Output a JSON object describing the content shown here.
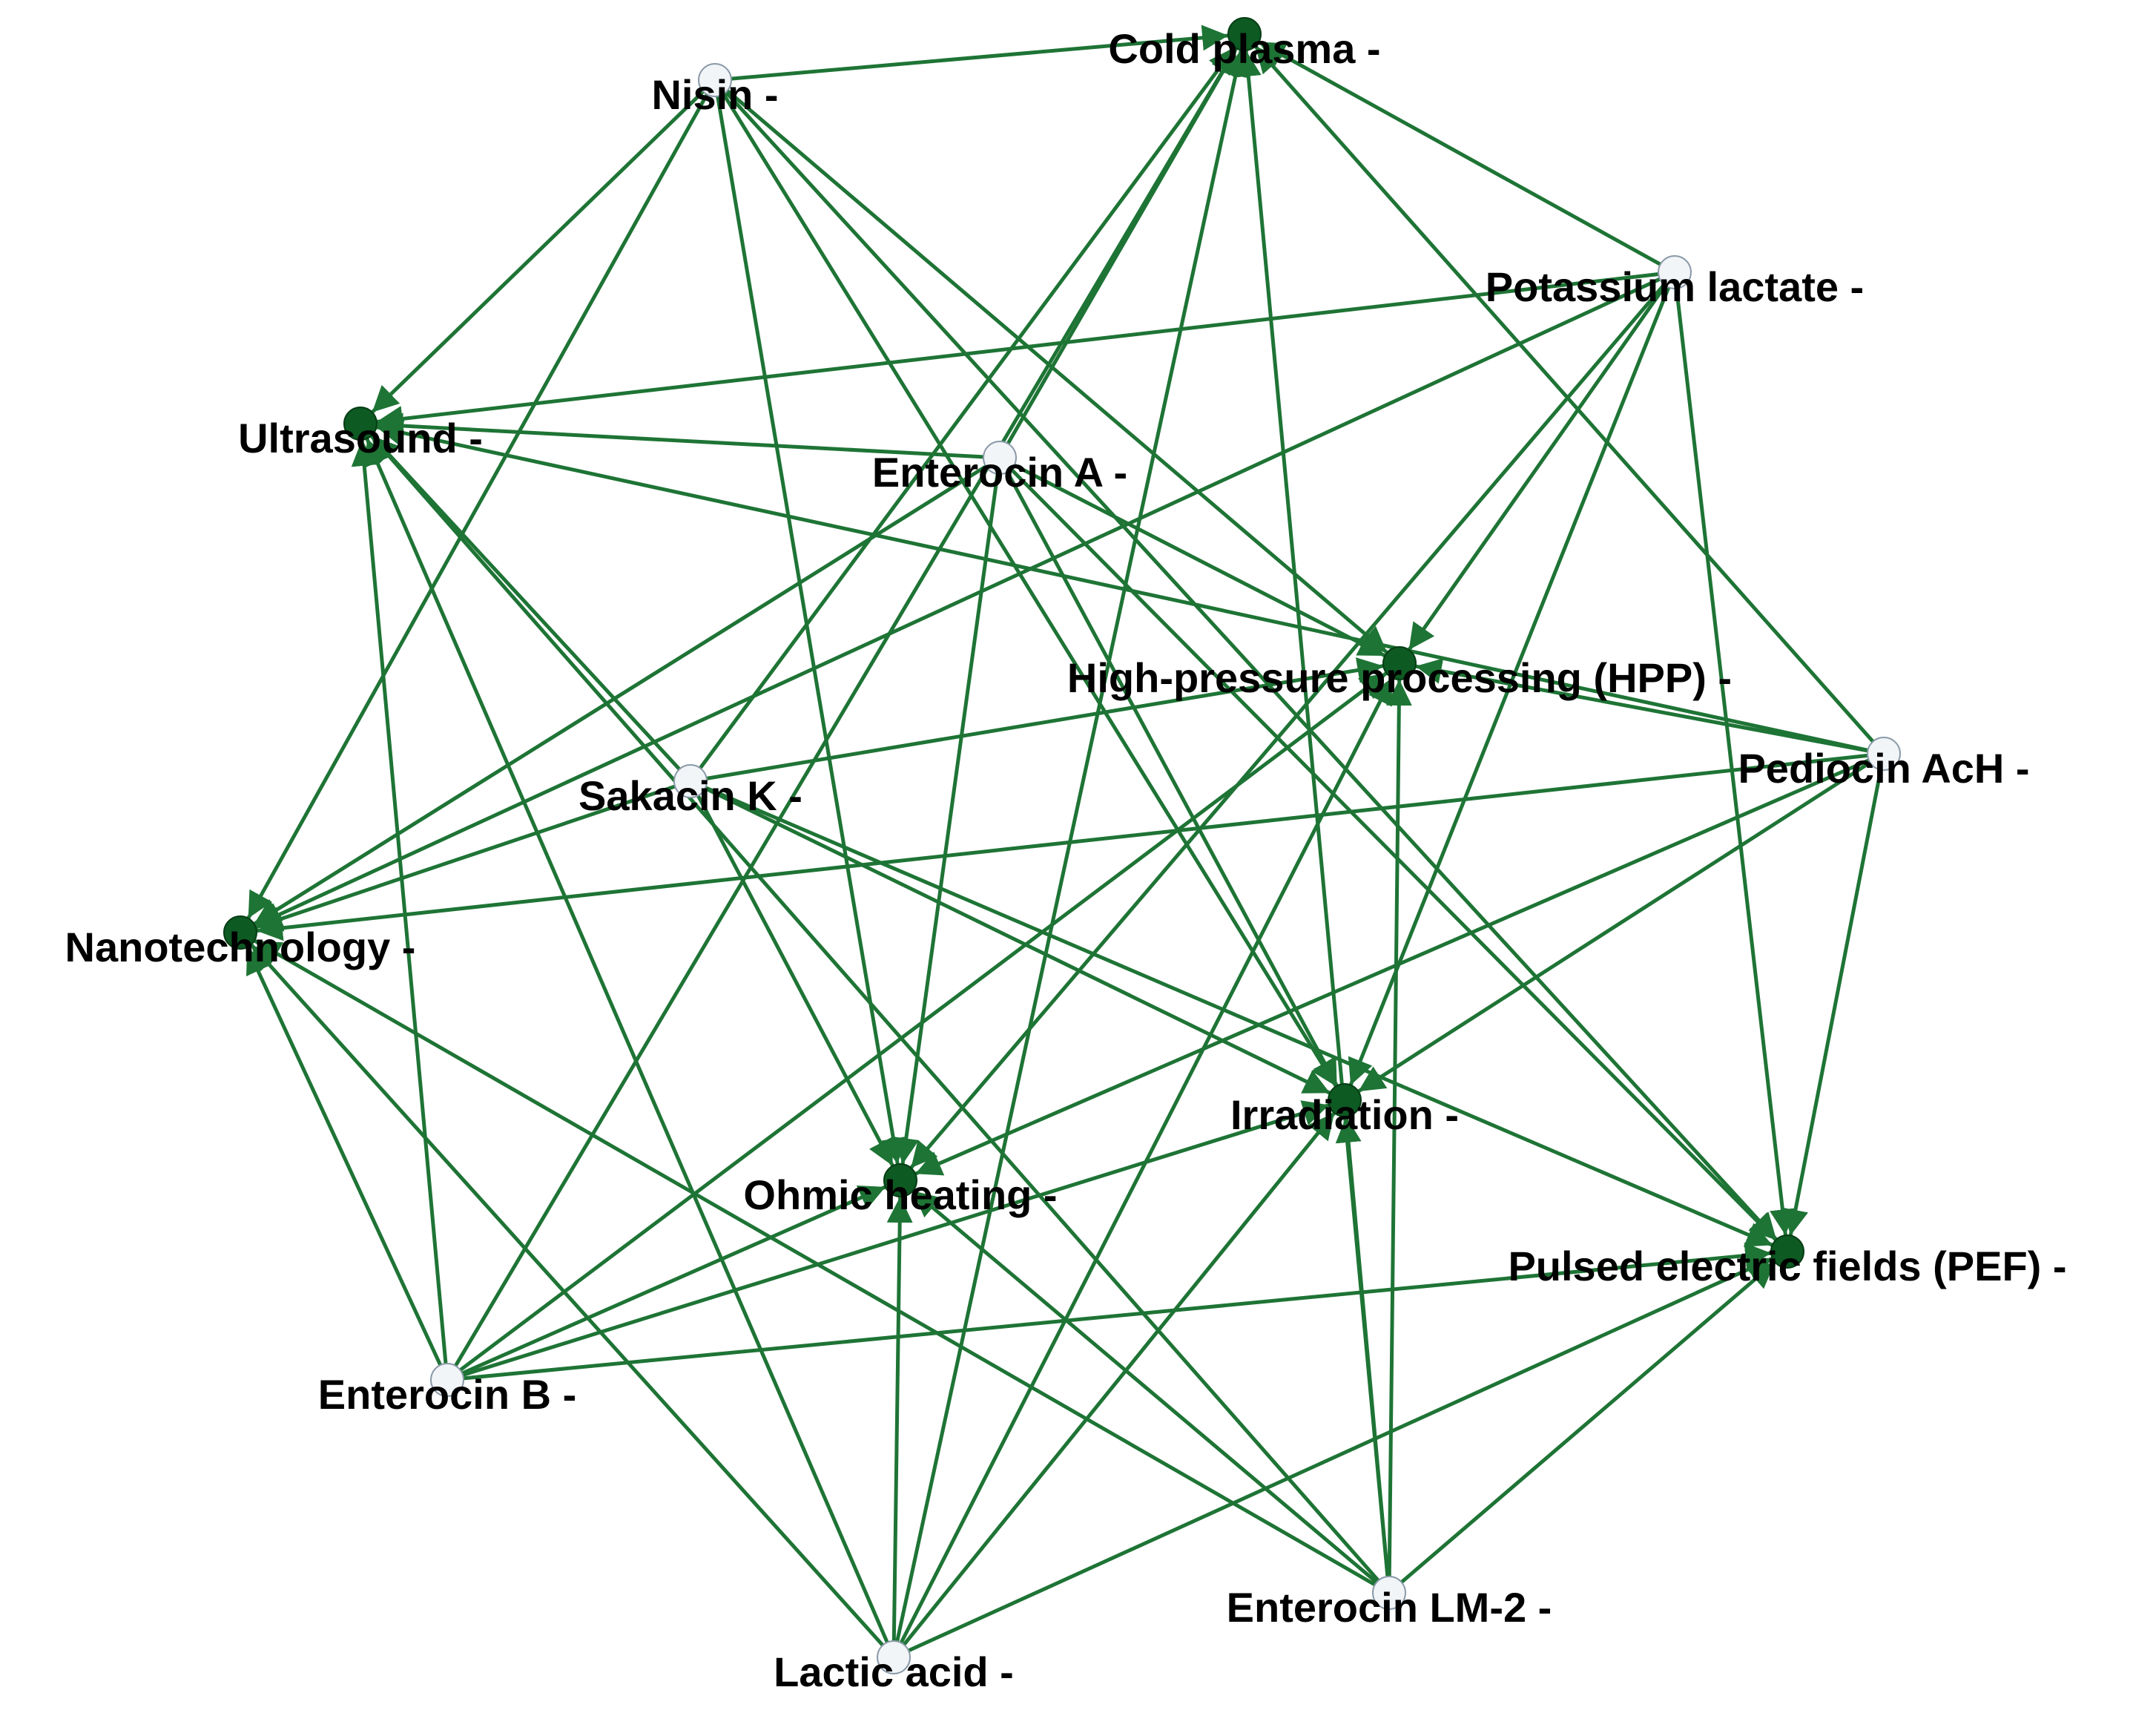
{
  "nodes": [
    {
      "label": "Nisin -"
    },
    {
      "label": "Potassium lactate -"
    },
    {
      "label": "Enterocin A -"
    },
    {
      "label": "Pediocin AcH -"
    },
    {
      "label": "Sakacin K -"
    },
    {
      "label": "Enterocin B -"
    },
    {
      "label": "Enterocin LM-2 -"
    },
    {
      "label": "Lactic acid -"
    },
    {
      "label": "Cold plasma -"
    },
    {
      "label": "Ultrasound -"
    },
    {
      "label": "High-pressure processing (HPP) -"
    },
    {
      "label": "Nanotechnology -"
    },
    {
      "label": "Irradiation -"
    },
    {
      "label": "Ohmic heating -"
    },
    {
      "label": "Pulsed electric fields (PEF) -"
    }
  ]
}
